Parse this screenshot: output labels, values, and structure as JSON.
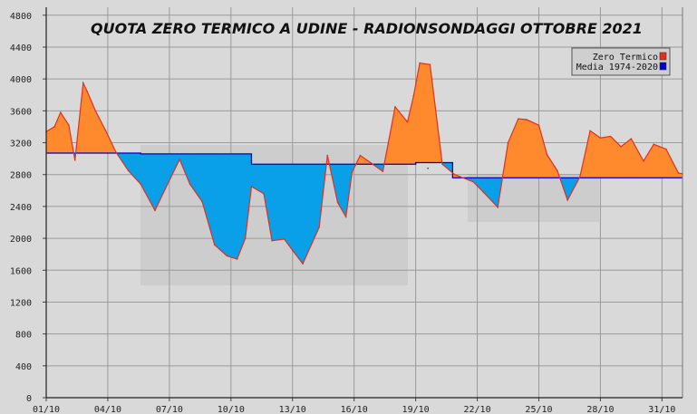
{
  "chart_data": {
    "type": "area",
    "title": "QUOTA ZERO TERMICO A UDINE - RADIONSONDAGGI OTTOBRE 2021",
    "xlabel": "",
    "ylabel": "",
    "ylim": [
      0,
      4900
    ],
    "y_ticks": [
      "0",
      "400",
      "800",
      "1200",
      "1600",
      "2000",
      "2400",
      "2800",
      "3200",
      "3600",
      "4000",
      "4400",
      "4800"
    ],
    "x_ticks": [
      "01/10",
      "04/10",
      "07/10",
      "10/10",
      "13/10",
      "16/10",
      "19/10",
      "22/10",
      "25/10",
      "28/10",
      "31/10"
    ],
    "grid": true,
    "legend_position": "top-right",
    "series": [
      {
        "name": "Zero Termico",
        "color": "#e03020",
        "x": [
          1.0,
          1.4,
          1.7,
          2.1,
          2.4,
          2.8,
          3.0,
          3.4,
          3.9,
          4.4,
          5.0,
          5.6,
          6.3,
          6.8,
          7.5,
          8.0,
          8.6,
          9.2,
          9.8,
          10.3,
          10.7,
          11.0,
          11.6,
          12.0,
          12.6,
          13.0,
          13.5,
          14.3,
          14.7,
          15.2,
          15.6,
          15.9,
          16.3,
          16.8,
          17.4,
          18.0,
          18.6,
          18.9,
          19.2,
          19.7,
          20.3,
          20.9,
          21.3,
          21.8,
          22.3,
          23.0,
          23.5,
          24.0,
          24.4,
          25.0,
          25.4,
          25.9,
          26.4,
          27.0,
          27.5,
          28.0,
          28.5,
          29.0,
          29.5,
          30.1,
          30.6,
          31.2,
          31.8,
          32.0
        ],
        "values": [
          3340,
          3400,
          3580,
          3420,
          2980,
          3950,
          3840,
          3600,
          3350,
          3080,
          2850,
          2680,
          2350,
          2620,
          2990,
          2680,
          2460,
          1920,
          1780,
          1740,
          2000,
          2650,
          2560,
          1970,
          1990,
          1850,
          1680,
          2140,
          3040,
          2450,
          2270,
          2830,
          3040,
          2950,
          2840,
          3650,
          3460,
          3790,
          4200,
          4180,
          2930,
          2800,
          2760,
          2710,
          2580,
          2390,
          3200,
          3500,
          3490,
          3420,
          3050,
          2850,
          2480,
          2770,
          3350,
          3260,
          3280,
          3150,
          3250,
          2970,
          3180,
          3120,
          2820,
          2810
        ]
      },
      {
        "name": "Media 1974-2020",
        "color": "#0000cc",
        "x": [
          1,
          5.6,
          5.6,
          11.0,
          11.0,
          19.0,
          19.0,
          20.8,
          20.8,
          32.0
        ],
        "values": [
          3070,
          3070,
          3060,
          3060,
          2930,
          2930,
          2950,
          2950,
          2760,
          2760
        ]
      }
    ],
    "fill_above_color": "#ff8a2e",
    "fill_below_color": "#0aa0e8",
    "tick_dot_label": "."
  }
}
